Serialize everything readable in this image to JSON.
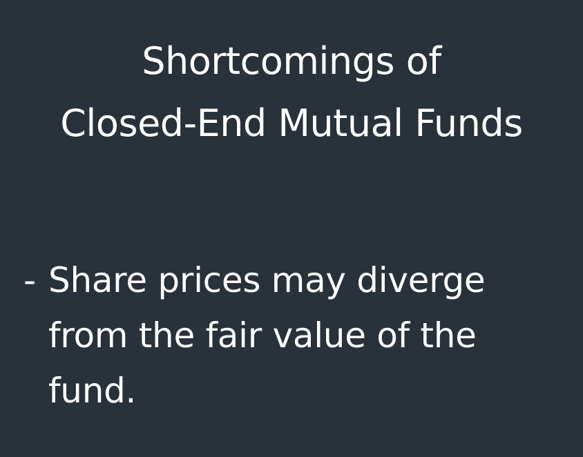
{
  "slide": {
    "title_lines": [
      "Shortcomings of",
      "Closed-End Mutual Funds"
    ],
    "bullet": {
      "marker": "-",
      "lines": [
        "Share prices may diverge",
        "from the fair value of the",
        "fund."
      ]
    }
  },
  "colors": {
    "background": "#29313a",
    "text": "#ffffff"
  }
}
